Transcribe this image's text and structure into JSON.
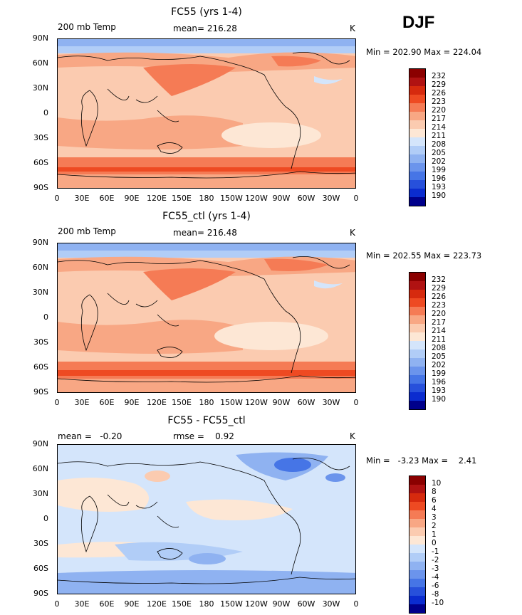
{
  "season": "DJF",
  "charts": [
    {
      "title": "FC55 (yrs 1-4)",
      "left_label": "200 mb Temp",
      "center_label": "mean= 216.28",
      "units": "K",
      "minmax": "Min = 202.90 Max = 224.04",
      "colorbar_labels": [
        "232",
        "229",
        "226",
        "223",
        "220",
        "217",
        "214",
        "211",
        "208",
        "205",
        "202",
        "199",
        "196",
        "193",
        "190"
      ]
    },
    {
      "title": "FC55_ctl (yrs 1-4)",
      "left_label": "200 mb Temp",
      "center_label": "mean= 216.48",
      "units": "K",
      "minmax": "Min = 202.55 Max = 223.73",
      "colorbar_labels": [
        "232",
        "229",
        "226",
        "223",
        "220",
        "217",
        "214",
        "211",
        "208",
        "205",
        "202",
        "199",
        "196",
        "193",
        "190"
      ]
    },
    {
      "title": "FC55 - FC55_ctl",
      "left_label": "mean =   -0.20",
      "center_label": "rmse =    0.92",
      "units": "K",
      "minmax": "Min =   -3.23 Max =    2.41",
      "colorbar_labels": [
        "10",
        "8",
        "6",
        "4",
        "3",
        "2",
        "1",
        "0",
        "-1",
        "-2",
        "-3",
        "-4",
        "-6",
        "-8",
        "-10"
      ]
    }
  ],
  "chart_data": {
    "type": "heatmap",
    "x_ticks": [
      "0",
      "30E",
      "60E",
      "90E",
      "120E",
      "150E",
      "180",
      "150W",
      "120W",
      "90W",
      "60W",
      "30W",
      "0"
    ],
    "y_ticks": [
      "90N",
      "60N",
      "30N",
      "0",
      "30S",
      "60S",
      "90S"
    ],
    "colors": [
      "#8b0000",
      "#b01212",
      "#d62a0e",
      "#ee4a22",
      "#f57b55",
      "#f8a784",
      "#fbcbb0",
      "#fde7d5",
      "#d4e5fb",
      "#b1cdf7",
      "#8fb2f1",
      "#6b94ec",
      "#4675e6",
      "#2750db",
      "#0b2ccf",
      "#00008b"
    ]
  }
}
